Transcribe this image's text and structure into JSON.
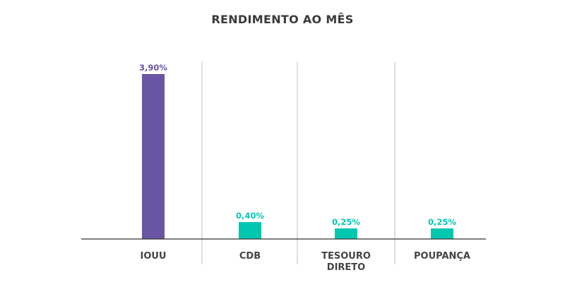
{
  "chart_data": {
    "type": "bar",
    "title": "RENDIMENTO AO MÊS",
    "categories": [
      "IOUU",
      "CDB",
      "TESOURO DIRETO",
      "POUPANÇA"
    ],
    "category_lines": [
      [
        "IOUU"
      ],
      [
        "CDB"
      ],
      [
        "TESOURO",
        "DIRETO"
      ],
      [
        "POUPANÇA"
      ]
    ],
    "values": [
      3.9,
      0.4,
      0.25,
      0.25
    ],
    "value_labels": [
      "3,90%",
      "0,40%",
      "0,25%",
      "0,25%"
    ],
    "bar_colors": [
      "#6a55a4",
      "#00c8b0",
      "#00c8b0",
      "#00c8b0"
    ],
    "ylim": [
      0,
      4.2
    ],
    "xlabel": "",
    "ylabel": "",
    "grid": false,
    "separator_color": "#c8c8c8",
    "axis_color": "#333333"
  }
}
